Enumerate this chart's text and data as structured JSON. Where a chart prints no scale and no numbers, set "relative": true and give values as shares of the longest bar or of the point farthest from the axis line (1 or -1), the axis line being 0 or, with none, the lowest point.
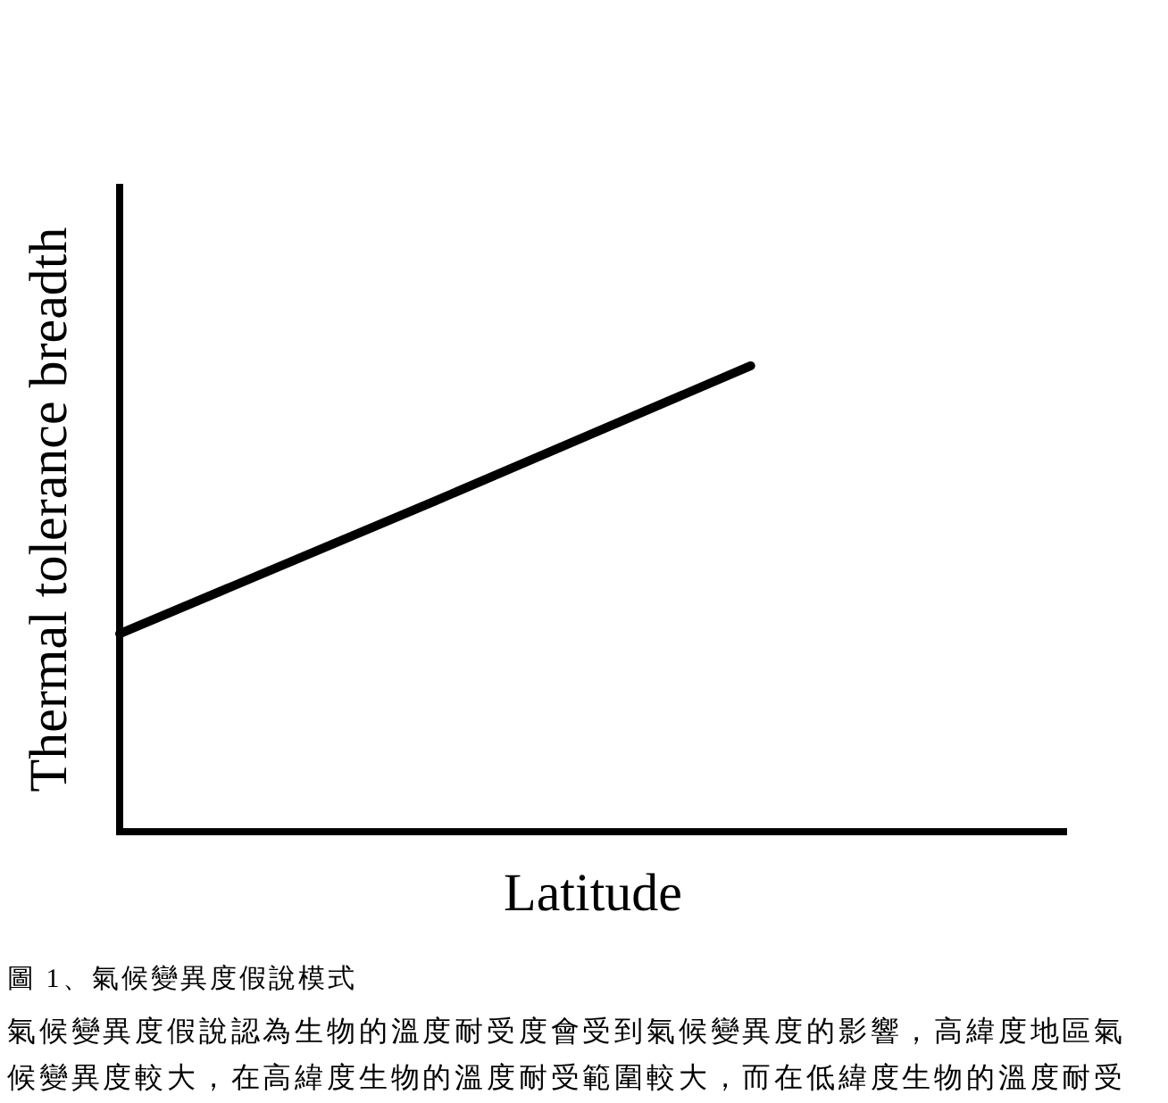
{
  "chart_data": {
    "type": "line",
    "title": "圖 1、氣候變異度假說模式",
    "xlabel": "Latitude",
    "ylabel": "Thermal tolerance breadth",
    "categories": [
      null,
      null,
      null,
      null
    ],
    "values": [
      0.425,
      0.71,
      1,
      null
    ],
    "color": "#000000",
    "relative": true,
    "annotations": [
      "氣候變異度假說認為生物的溫度耐受度會受到氣候變異度的影響，高緯度地區氣候變異度較大，在高緯度生物的溫度耐受範圍較大，而在低緯度生物的溫度耐受"
    ],
    "grid": false,
    "legend": false,
    "marker": "none",
    "line_style": "solid",
    "tick_labels": false
  }
}
